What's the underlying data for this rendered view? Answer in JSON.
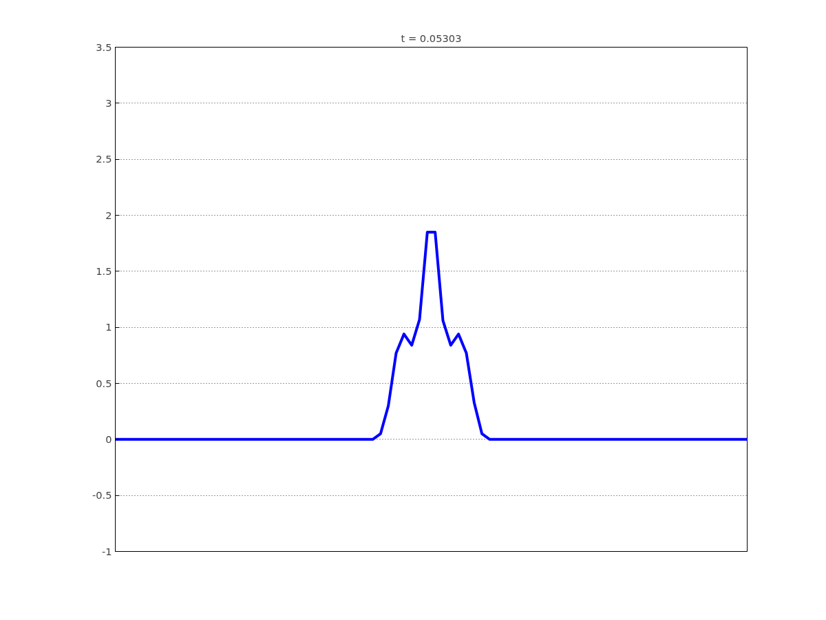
{
  "chart_data": {
    "type": "line",
    "title": "t = 0.05303",
    "categories": [
      null,
      null,
      null,
      null,
      null,
      null,
      null,
      null,
      null,
      null,
      null,
      null,
      null,
      null,
      null,
      null,
      null,
      null,
      null,
      null,
      null,
      null,
      null,
      null,
      null,
      null,
      null,
      null,
      null,
      null,
      null,
      null,
      null,
      null,
      null,
      null,
      null,
      null,
      null,
      null,
      null,
      null,
      null,
      null,
      null,
      null,
      null,
      null,
      null,
      null,
      null,
      null,
      null,
      null,
      null,
      null,
      null,
      null,
      null,
      null,
      null,
      null,
      null,
      null,
      null,
      null,
      null,
      null,
      null,
      null,
      null,
      null,
      null,
      null,
      null,
      null,
      null,
      null,
      null,
      null,
      null,
      null
    ],
    "values": [
      0,
      0,
      0,
      0,
      0,
      0,
      0,
      0,
      0,
      0,
      0,
      0,
      0,
      0,
      0,
      0,
      0,
      0,
      0,
      0,
      0,
      0,
      0,
      0,
      0,
      0,
      0,
      0,
      0,
      0,
      0,
      0,
      0,
      0,
      0.05,
      0.3,
      0.77,
      0.94,
      0.84,
      1.07,
      1.85,
      1.85,
      1.06,
      0.84,
      0.94,
      0.77,
      0.33,
      0.05,
      0,
      0,
      0,
      0,
      0,
      0,
      0,
      0,
      0,
      0,
      0,
      0,
      0,
      0,
      0,
      0,
      0,
      0,
      0,
      0,
      0,
      0,
      0,
      0,
      0,
      0,
      0,
      0,
      0,
      0,
      0,
      0,
      0,
      0
    ],
    "color": "#0000ff",
    "line_style": "solid",
    "ylim": [
      -1,
      3.5
    ],
    "yticks": [
      -1,
      -0.5,
      0,
      0.5,
      1,
      1.5,
      2,
      2.5,
      3,
      3.5
    ],
    "grid": "y",
    "tick_labels": "y"
  }
}
